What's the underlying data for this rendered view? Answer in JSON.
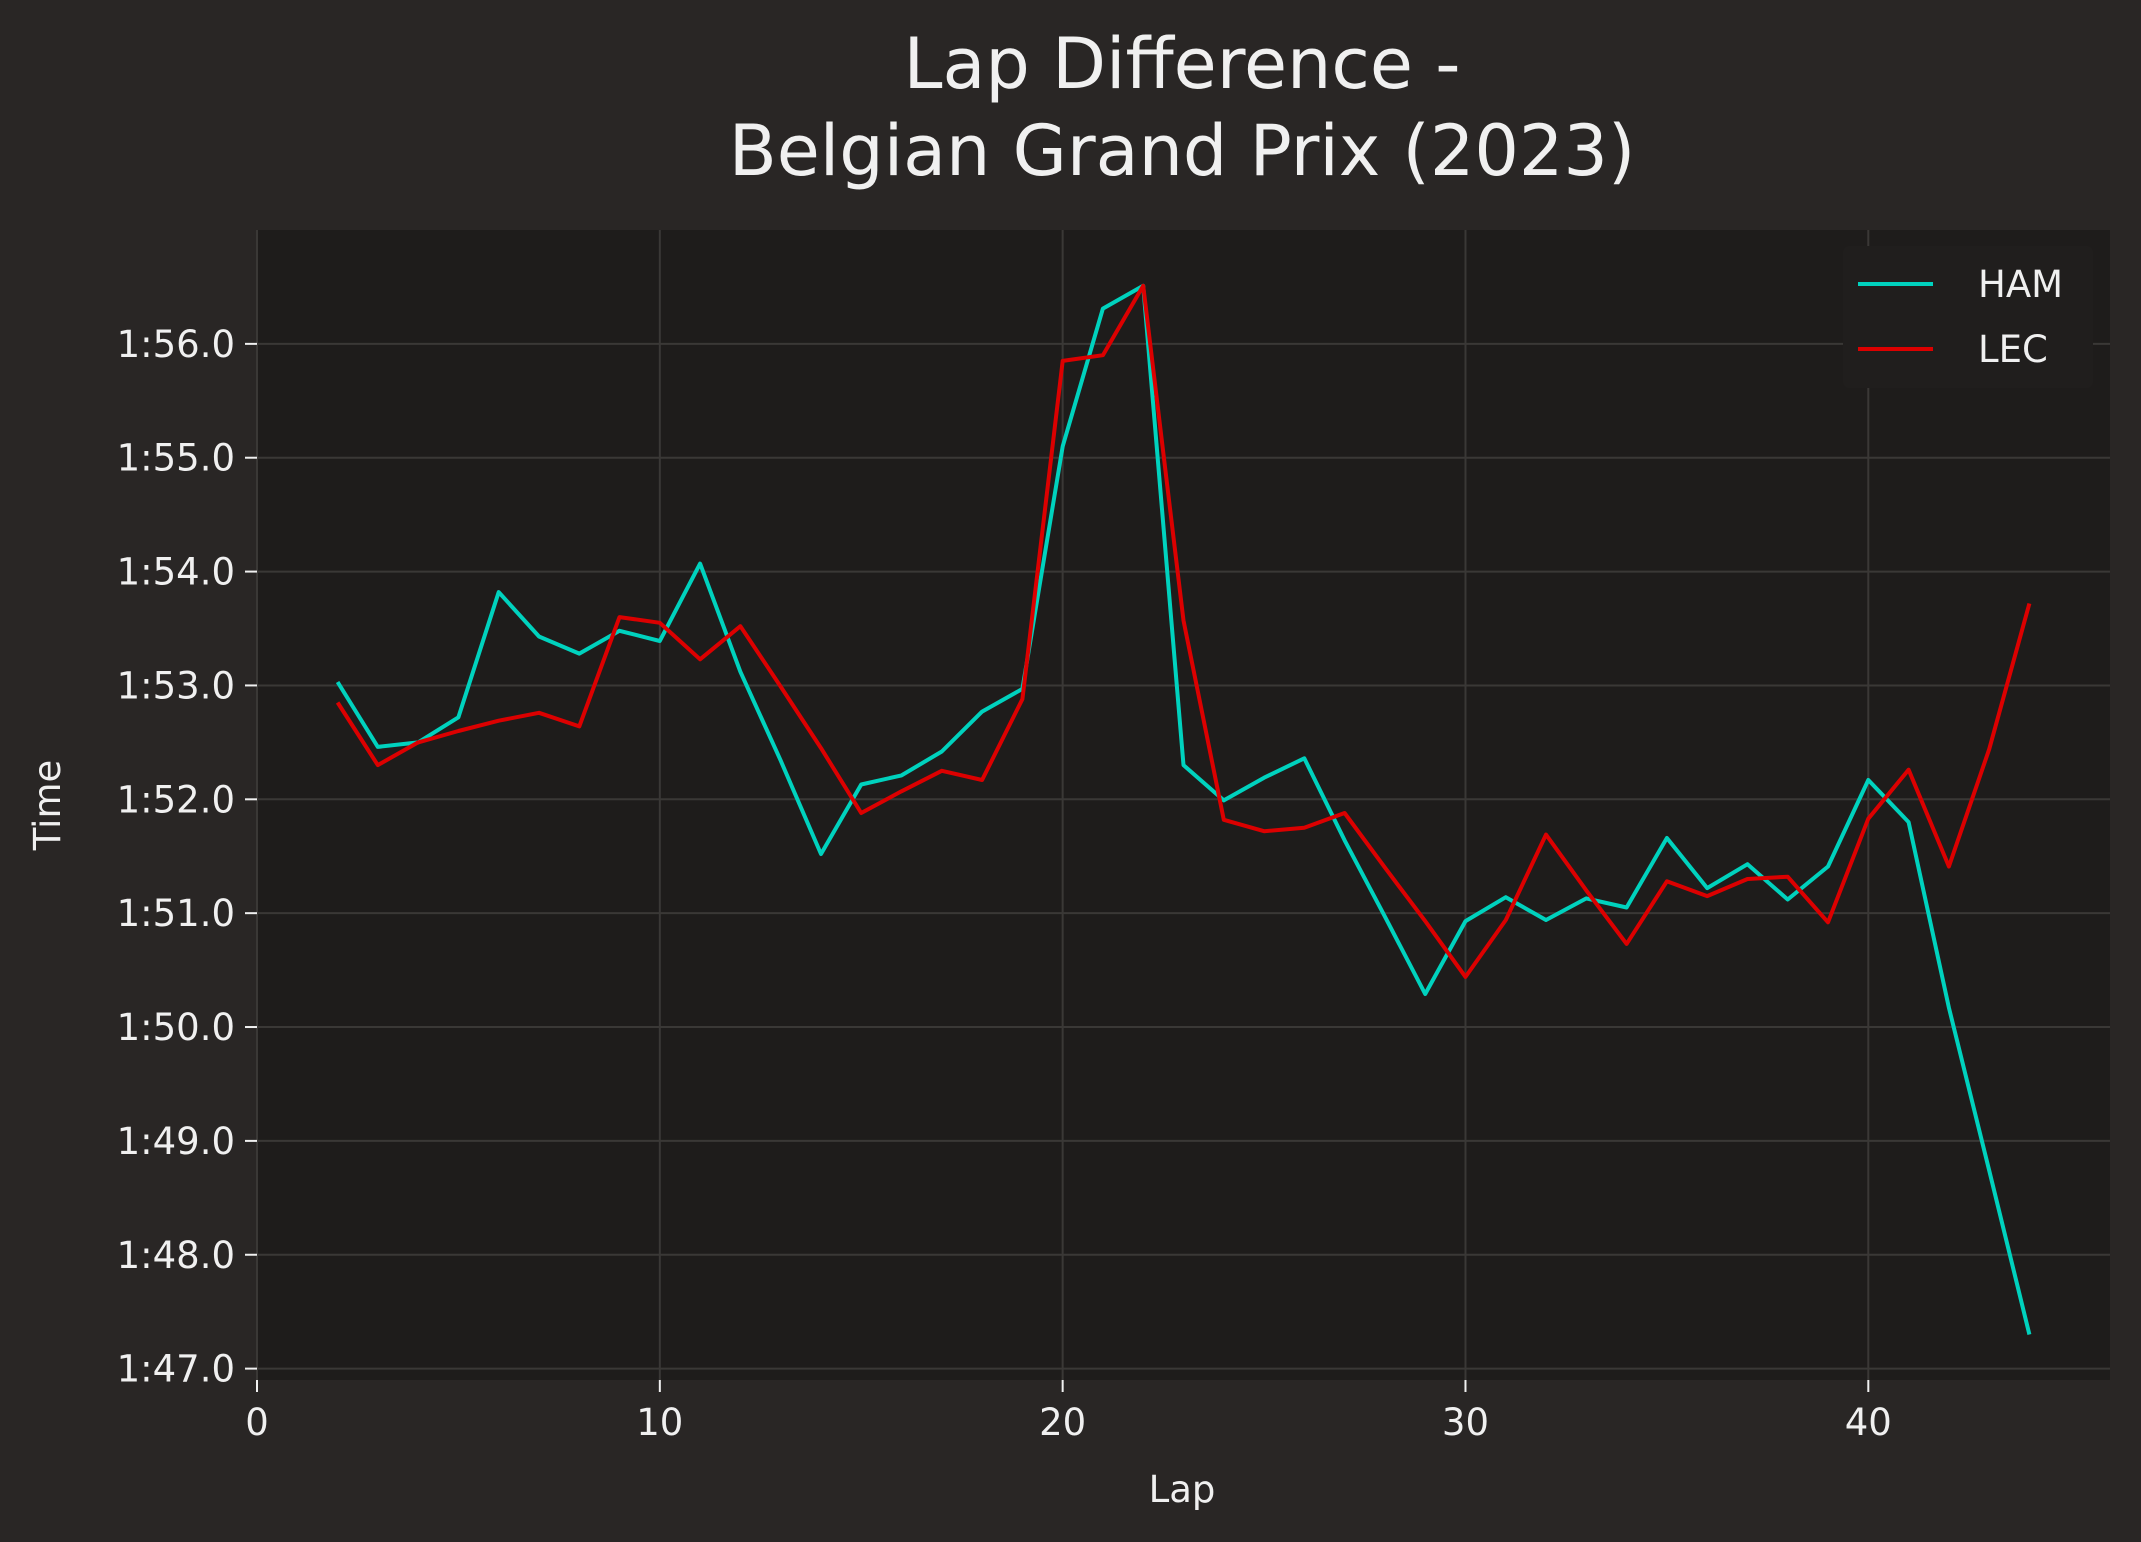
{
  "chart_data": {
    "type": "line",
    "title": [
      "Lap Difference -",
      "Belgian Grand Prix (2023)"
    ],
    "xlabel": "Lap",
    "ylabel": "Time",
    "xlim": [
      0,
      46
    ],
    "ylim": [
      106.9,
      117.0
    ],
    "x_ticks": [
      0,
      10,
      20,
      30,
      40
    ],
    "y_ticks": [
      107,
      108,
      109,
      110,
      111,
      112,
      113,
      114,
      115,
      116
    ],
    "y_tick_labels": [
      "1:47.0",
      "1:48.0",
      "1:49.0",
      "1:50.0",
      "1:51.0",
      "1:52.0",
      "1:53.0",
      "1:54.0",
      "1:55.0",
      "1:56.0"
    ],
    "grid": true,
    "legend_position": "top-right",
    "colors": {
      "background": "#292625",
      "plot_background": "#1e1c1b",
      "grid": "#3a3836",
      "text": "#f0f0f0",
      "legend_background": "#201e1d"
    },
    "series": [
      {
        "name": "HAM",
        "color": "#00d2be",
        "x": [
          2,
          3,
          4,
          5,
          6,
          7,
          8,
          9,
          10,
          11,
          12,
          13,
          14,
          15,
          16,
          17,
          18,
          19,
          20,
          21,
          22,
          23,
          24,
          25,
          26,
          27,
          28,
          29,
          30,
          31,
          32,
          33,
          34,
          35,
          36,
          37,
          38,
          39,
          40,
          41,
          42,
          43,
          44
        ],
        "values": [
          113.03,
          112.46,
          112.5,
          112.72,
          113.82,
          113.43,
          113.28,
          113.48,
          113.39,
          114.07,
          113.12,
          112.34,
          111.52,
          112.13,
          112.21,
          112.42,
          112.77,
          112.97,
          115.1,
          116.31,
          116.51,
          112.3,
          111.99,
          112.19,
          112.36,
          111.64,
          110.97,
          110.29,
          110.93,
          111.14,
          110.94,
          111.13,
          111.05,
          111.66,
          111.22,
          111.43,
          111.12,
          111.41,
          112.17,
          111.8,
          110.17,
          108.74,
          107.3
        ]
      },
      {
        "name": "LEC",
        "color": "#dc0000",
        "x": [
          2,
          3,
          4,
          5,
          6,
          7,
          8,
          9,
          10,
          11,
          12,
          13,
          14,
          15,
          16,
          17,
          18,
          19,
          20,
          21,
          22,
          23,
          24,
          25,
          26,
          27,
          28,
          29,
          30,
          31,
          32,
          33,
          34,
          35,
          36,
          37,
          38,
          39,
          40,
          41,
          42,
          43,
          44
        ],
        "values": [
          112.85,
          112.3,
          112.5,
          112.6,
          112.69,
          112.76,
          112.64,
          113.6,
          113.55,
          113.23,
          113.52,
          112.99,
          112.45,
          111.88,
          112.07,
          112.25,
          112.17,
          112.88,
          115.85,
          115.9,
          116.51,
          113.57,
          111.82,
          111.72,
          111.75,
          111.88,
          111.4,
          110.93,
          110.44,
          110.94,
          111.69,
          111.2,
          110.73,
          111.28,
          111.15,
          111.3,
          111.32,
          110.92,
          111.83,
          112.26,
          111.41,
          112.44,
          113.72
        ]
      }
    ]
  }
}
